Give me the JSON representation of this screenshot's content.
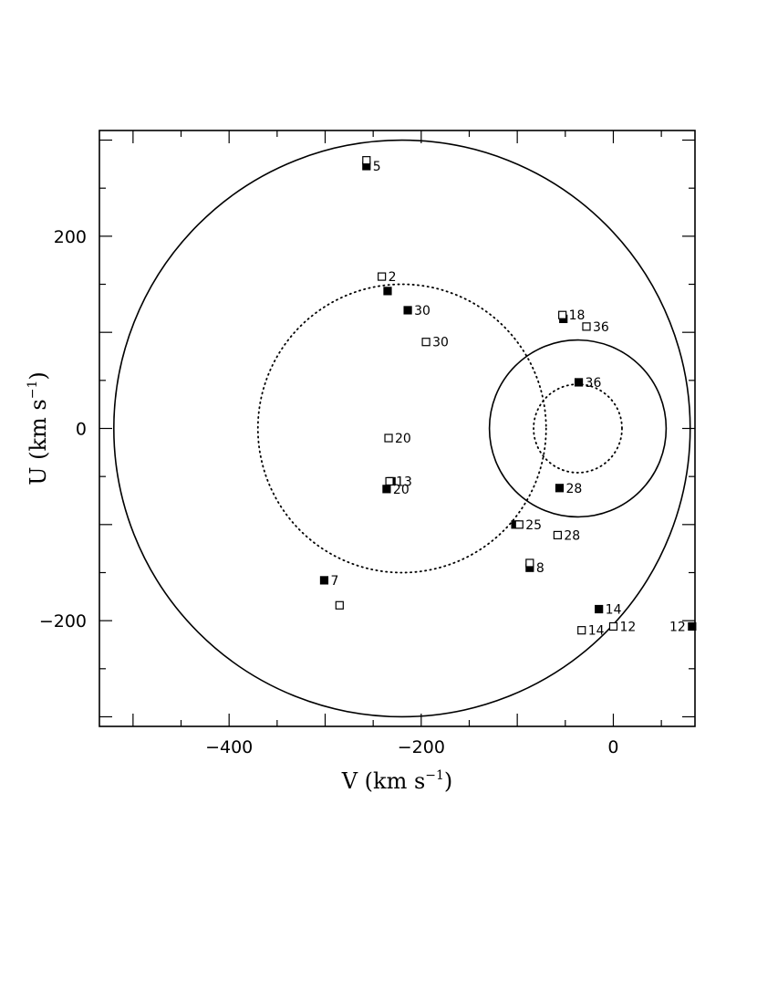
{
  "chart_data": {
    "type": "scatter",
    "xlabel": "V (km s",
    "ylabel": "U (km s",
    "unit_exponent": "−1",
    "axis_label_close": ")",
    "xlim": [
      -535,
      85
    ],
    "ylim": [
      -310,
      310
    ],
    "x_ticks": [
      {
        "value": -400,
        "label": "−400"
      },
      {
        "value": -200,
        "label": "−200"
      },
      {
        "value": 0,
        "label": "0"
      }
    ],
    "y_ticks": [
      {
        "value": 200,
        "label": "200"
      },
      {
        "value": 0,
        "label": "0"
      },
      {
        "value": -200,
        "label": "−200"
      }
    ],
    "circles": [
      {
        "cx": -220,
        "cy": 0,
        "r": 300,
        "style": "solid"
      },
      {
        "cx": -220,
        "cy": 0,
        "r": 150,
        "style": "dotted"
      },
      {
        "cx": -37,
        "cy": 0,
        "r": 92,
        "style": "solid"
      },
      {
        "cx": -37,
        "cy": 0,
        "r": 46,
        "style": "dotted"
      }
    ],
    "series": [
      {
        "marker": "filled-square",
        "points": [
          {
            "x": -257,
            "y": 273,
            "label": "5"
          },
          {
            "x": -235,
            "y": 143,
            "label": ""
          },
          {
            "x": -214,
            "y": 123,
            "label": "30"
          },
          {
            "x": -52,
            "y": 114,
            "label": ""
          },
          {
            "x": -36,
            "y": 48,
            "label": "36"
          },
          {
            "x": -231,
            "y": -55,
            "label": ""
          },
          {
            "x": -236,
            "y": -63,
            "label": "20"
          },
          {
            "x": -56,
            "y": -62,
            "label": "28"
          },
          {
            "x": -102,
            "y": -100,
            "label": ""
          },
          {
            "x": -87,
            "y": -145,
            "label": "8"
          },
          {
            "x": -301,
            "y": -158,
            "label": "7"
          },
          {
            "x": -15,
            "y": -188,
            "label": "14"
          },
          {
            "x": 82,
            "y": -206,
            "label": "12"
          }
        ]
      },
      {
        "marker": "open-square",
        "points": [
          {
            "x": -257,
            "y": 279,
            "label": ""
          },
          {
            "x": -241,
            "y": 158,
            "label": "2"
          },
          {
            "x": -195,
            "y": 90,
            "label": "30"
          },
          {
            "x": -53,
            "y": 118,
            "label": "18"
          },
          {
            "x": -28,
            "y": 106,
            "label": "36"
          },
          {
            "x": -234,
            "y": -10,
            "label": "20"
          },
          {
            "x": -233,
            "y": -55,
            "label": "13"
          },
          {
            "x": -98,
            "y": -100,
            "label": "25"
          },
          {
            "x": -58,
            "y": -111,
            "label": "28"
          },
          {
            "x": -87,
            "y": -140,
            "label": ""
          },
          {
            "x": -285,
            "y": -184,
            "label": ""
          },
          {
            "x": -33,
            "y": -210,
            "label": "14"
          },
          {
            "x": 0,
            "y": -206,
            "label": "12"
          }
        ]
      }
    ]
  }
}
